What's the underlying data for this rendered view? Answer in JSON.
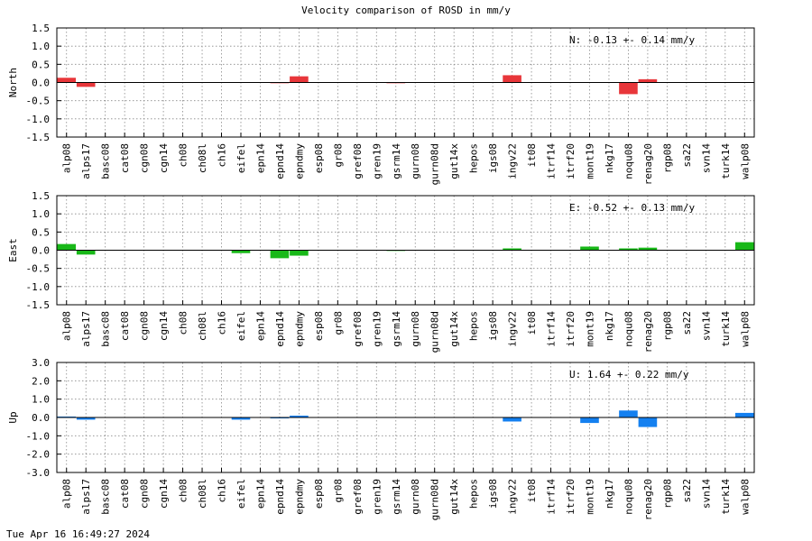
{
  "title": "Velocity comparison of ROSD in mm/y",
  "timestamp": "Tue Apr 16 16:49:27 2024",
  "chart_data": [
    {
      "type": "bar",
      "ylabel": "North",
      "ylim": [
        -1.5,
        1.5
      ],
      "yticks": [
        "1.5",
        "1.0",
        "0.5",
        "0.0",
        "-0.5",
        "-1.0",
        "-1.5"
      ],
      "color": "#e8363a",
      "annotation": "N:  -0.13 +-  0.14 mm/y",
      "grid": true,
      "categories": [
        "alp08",
        "alps17",
        "basc08",
        "cat08",
        "cgn08",
        "cgn14",
        "ch08",
        "ch08l",
        "ch16",
        "eifel",
        "epn14",
        "epnd14",
        "epndmy",
        "esp08",
        "gr08",
        "gref08",
        "gren19",
        "gsrm14",
        "gurn08",
        "gurn08d",
        "gut14x",
        "hepos",
        "igs08",
        "ingv22",
        "it08",
        "itrf14",
        "itrf20",
        "mont19",
        "nkg17",
        "noqu08",
        "renag20",
        "rgp08",
        "sa22",
        "svn14",
        "turk14",
        "walp08"
      ],
      "values": [
        0.13,
        -0.12,
        0,
        0,
        0,
        0,
        0,
        0,
        0,
        0,
        0,
        -0.02,
        0.17,
        0,
        0,
        0,
        0,
        -0.02,
        0,
        0,
        0,
        0,
        0,
        0.2,
        0,
        0,
        0,
        0,
        0,
        -0.32,
        0.09,
        0,
        0,
        0,
        0,
        0
      ]
    },
    {
      "type": "bar",
      "ylabel": "East",
      "ylim": [
        -1.5,
        1.5
      ],
      "yticks": [
        "1.5",
        "1.0",
        "0.5",
        "0.0",
        "-0.5",
        "-1.0",
        "-1.5"
      ],
      "color": "#18b818",
      "annotation": "E:  -0.52 +-  0.13 mm/y",
      "grid": true,
      "categories": [
        "alp08",
        "alps17",
        "basc08",
        "cat08",
        "cgn08",
        "cgn14",
        "ch08",
        "ch08l",
        "ch16",
        "eifel",
        "epn14",
        "epnd14",
        "epndmy",
        "esp08",
        "gr08",
        "gref08",
        "gren19",
        "gsrm14",
        "gurn08",
        "gurn08d",
        "gut14x",
        "hepos",
        "igs08",
        "ingv22",
        "it08",
        "itrf14",
        "itrf20",
        "mont19",
        "nkg17",
        "noqu08",
        "renag20",
        "rgp08",
        "sa22",
        "svn14",
        "turk14",
        "walp08"
      ],
      "values": [
        0.17,
        -0.12,
        0,
        0,
        0,
        0,
        0,
        0,
        0,
        -0.08,
        0,
        -0.22,
        -0.15,
        0,
        0,
        0,
        0,
        -0.02,
        0,
        0,
        0,
        0,
        0,
        0.05,
        0,
        0,
        0,
        0.1,
        0,
        0.05,
        0.07,
        0,
        0,
        0,
        0,
        0.22
      ]
    },
    {
      "type": "bar",
      "ylabel": "Up",
      "ylim": [
        -3.0,
        3.0
      ],
      "yticks": [
        "3.0",
        "2.0",
        "1.0",
        "0.0",
        "-1.0",
        "-2.0",
        "-3.0"
      ],
      "color": "#1480f0",
      "annotation": "U:   1.64 +-  0.22 mm/y",
      "grid": true,
      "categories": [
        "alp08",
        "alps17",
        "basc08",
        "cat08",
        "cgn08",
        "cgn14",
        "ch08",
        "ch08l",
        "ch16",
        "eifel",
        "epn14",
        "epnd14",
        "epndmy",
        "esp08",
        "gr08",
        "gref08",
        "gren19",
        "gsrm14",
        "gurn08",
        "gurn08d",
        "gut14x",
        "hepos",
        "igs08",
        "ingv22",
        "it08",
        "itrf14",
        "itrf20",
        "mont19",
        "nkg17",
        "noqu08",
        "renag20",
        "rgp08",
        "sa22",
        "svn14",
        "turk14",
        "walp08"
      ],
      "values": [
        0.05,
        -0.12,
        0,
        0,
        0,
        0,
        0,
        0,
        0,
        -0.12,
        0,
        -0.05,
        0.1,
        0,
        0,
        0,
        0,
        0,
        0,
        0,
        0,
        0,
        0,
        -0.22,
        0,
        0,
        0,
        -0.3,
        0,
        0.38,
        -0.52,
        0,
        0,
        0,
        0,
        0.25
      ]
    }
  ]
}
